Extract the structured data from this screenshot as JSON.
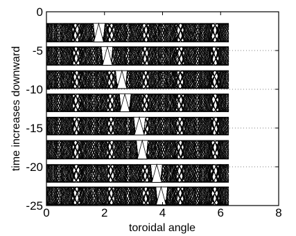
{
  "chart_data": {
    "type": "line",
    "title": "",
    "xlabel": "toroidal angle",
    "ylabel": "time increases downward",
    "xlim": [
      0,
      8
    ],
    "ylim": [
      -25,
      0
    ],
    "xticks": [
      0,
      2,
      4,
      6,
      8
    ],
    "yticks": [
      0,
      -5,
      -10,
      -15,
      -20,
      -25
    ],
    "xtick_labels": [
      "0",
      "2",
      "4",
      "6",
      "8"
    ],
    "ytick_labels": [
      "0",
      "-5",
      "-10",
      "-15",
      "-20",
      "-25"
    ],
    "grid": "horizontal dotted",
    "line_color": "#000000",
    "x_extent": [
      0.0,
      6.28
    ],
    "bands": [
      {
        "y_top": -1.5,
        "y_bottom": -3.9,
        "spike_x": 1.8
      },
      {
        "y_top": -4.5,
        "y_bottom": -6.9,
        "spike_x": 2.1
      },
      {
        "y_top": -7.6,
        "y_bottom": -9.9,
        "spike_x": 2.6
      },
      {
        "y_top": -10.6,
        "y_bottom": -12.9,
        "spike_x": 2.7
      },
      {
        "y_top": -13.6,
        "y_bottom": -15.9,
        "spike_x": 3.2
      },
      {
        "y_top": -16.6,
        "y_bottom": -19.0,
        "spike_x": 3.3
      },
      {
        "y_top": -19.7,
        "y_bottom": -22.0,
        "spike_x": 3.8
      },
      {
        "y_top": -22.6,
        "y_bottom": -24.9,
        "spike_x": 3.95
      }
    ]
  }
}
